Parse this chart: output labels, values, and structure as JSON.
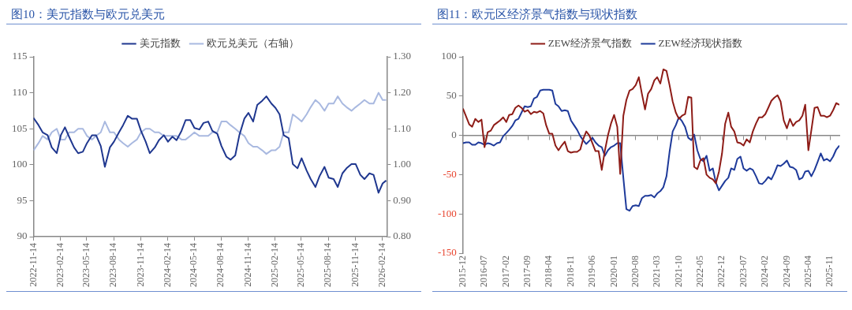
{
  "chart_data": [
    {
      "type": "line",
      "title": "图10：美元指数与欧元兑美元",
      "legend": "top",
      "grid": false,
      "x": [
        "2022-11-14",
        "2022-12-01",
        "2022-12-15",
        "2023-01-01",
        "2023-01-15",
        "2023-02-01",
        "2023-02-15",
        "2023-03-01",
        "2023-03-15",
        "2023-04-01",
        "2023-04-15",
        "2023-05-01",
        "2023-05-15",
        "2023-06-01",
        "2023-06-15",
        "2023-07-01",
        "2023-07-15",
        "2023-08-01",
        "2023-08-15",
        "2023-09-01",
        "2023-09-15",
        "2023-10-01",
        "2023-10-15",
        "2023-11-01",
        "2023-11-15",
        "2023-12-01",
        "2023-12-15",
        "2024-01-01",
        "2024-01-15",
        "2024-02-01",
        "2024-02-15",
        "2024-03-01",
        "2024-03-15",
        "2024-04-01",
        "2024-04-15",
        "2024-05-01",
        "2024-05-15",
        "2024-06-01",
        "2024-06-15",
        "2024-07-01",
        "2024-07-15",
        "2024-08-01",
        "2024-08-15",
        "2024-09-01",
        "2024-09-15",
        "2024-10-01",
        "2024-10-15",
        "2024-11-01",
        "2024-11-15",
        "2024-12-01",
        "2024-12-15",
        "2025-01-01",
        "2025-01-15",
        "2025-02-01",
        "2025-02-15",
        "2025-03-01",
        "2025-03-15",
        "2025-04-01",
        "2025-04-15",
        "2025-05-01",
        "2025-05-15",
        "2025-06-01",
        "2025-06-15",
        "2025-07-01",
        "2025-07-15",
        "2025-08-01",
        "2025-08-15",
        "2025-09-01",
        "2025-09-15",
        "2025-10-01",
        "2025-10-15",
        "2025-11-01",
        "2025-11-15",
        "2025-12-01",
        "2025-12-15",
        "2026-01-01",
        "2026-01-15",
        "2026-02-01",
        "2026-02-15",
        "2026-02-27"
      ],
      "xlim": [
        "2022-11-14",
        "2026-03-01"
      ],
      "xticks": [
        "2022-11-14",
        "2023-02-14",
        "2023-05-14",
        "2023-08-14",
        "2023-11-14",
        "2024-02-14",
        "2024-05-14",
        "2024-08-14",
        "2024-11-14",
        "2025-02-14",
        "2025-05-14",
        "2025-08-14",
        "2025-11-14",
        "2026-02-14"
      ],
      "ylim": [
        90,
        115
      ],
      "yticks": [
        90,
        95,
        100,
        105,
        110,
        115
      ],
      "y2lim": [
        0.8,
        1.3
      ],
      "y2ticks": [
        {
          "value": 0.8,
          "label": "0.80"
        },
        {
          "value": 0.9,
          "label": "0.90"
        },
        {
          "value": 1.0,
          "label": "1.00"
        },
        {
          "value": 1.1,
          "label": "1.10"
        },
        {
          "value": 1.2,
          "label": "1.20"
        },
        {
          "value": 1.3,
          "label": "1.30"
        }
      ],
      "series": [
        {
          "name": "美元指数",
          "color": "#1f378f",
          "values": [
            106.5,
            105.5,
            104.5,
            104.1,
            102.4,
            101.6,
            104.1,
            105.2,
            103.9,
            102.4,
            101.6,
            101.8,
            103.0,
            104.1,
            104.1,
            102.6,
            99.7,
            102.4,
            103.2,
            104.5,
            105.5,
            106.8,
            106.4,
            106.4,
            104.7,
            103.2,
            101.6,
            102.4,
            103.4,
            104.1,
            103.2,
            103.9,
            103.4,
            104.7,
            106.2,
            106.2,
            105.1,
            104.9,
            105.8,
            106.0,
            104.7,
            104.3,
            102.6,
            101.1,
            100.7,
            101.3,
            104.1,
            106.4,
            107.2,
            106.0,
            108.3,
            108.9,
            109.5,
            108.5,
            107.9,
            107.0,
            104.1,
            103.7,
            100.1,
            99.5,
            100.9,
            99.2,
            98.0,
            96.9,
            98.4,
            99.7,
            98.2,
            98.0,
            96.9,
            98.8,
            99.5,
            100.1,
            100.1,
            98.6,
            98.0,
            98.8,
            98.6,
            96.1,
            97.4,
            97.8
          ]
        },
        {
          "name": "欧元兑美元（右轴）",
          "color": "#a9b9e0",
          "axis": "y2",
          "values": [
            1.04,
            1.06,
            1.08,
            1.07,
            1.09,
            1.1,
            1.07,
            1.07,
            1.09,
            1.09,
            1.1,
            1.1,
            1.08,
            1.07,
            1.08,
            1.09,
            1.12,
            1.09,
            1.09,
            1.07,
            1.06,
            1.05,
            1.06,
            1.07,
            1.09,
            1.1,
            1.1,
            1.09,
            1.09,
            1.08,
            1.08,
            1.08,
            1.08,
            1.07,
            1.07,
            1.08,
            1.09,
            1.08,
            1.08,
            1.08,
            1.09,
            1.09,
            1.12,
            1.12,
            1.11,
            1.1,
            1.09,
            1.08,
            1.06,
            1.05,
            1.05,
            1.04,
            1.03,
            1.04,
            1.04,
            1.05,
            1.09,
            1.09,
            1.14,
            1.13,
            1.12,
            1.14,
            1.16,
            1.18,
            1.17,
            1.15,
            1.17,
            1.17,
            1.19,
            1.17,
            1.16,
            1.15,
            1.16,
            1.17,
            1.18,
            1.17,
            1.17,
            1.2,
            1.18,
            1.18
          ]
        }
      ]
    },
    {
      "type": "line",
      "title": "图11：欧元区经济景气指数与现状指数",
      "legend": "top",
      "grid": false,
      "x": [
        "2015-12",
        "2016-01",
        "2016-02",
        "2016-03",
        "2016-04",
        "2016-05",
        "2016-06",
        "2016-07",
        "2016-08",
        "2016-09",
        "2016-10",
        "2016-11",
        "2016-12",
        "2017-01",
        "2017-02",
        "2017-03",
        "2017-04",
        "2017-05",
        "2017-06",
        "2017-07",
        "2017-08",
        "2017-09",
        "2017-10",
        "2017-11",
        "2017-12",
        "2018-01",
        "2018-02",
        "2018-03",
        "2018-04",
        "2018-05",
        "2018-06",
        "2018-07",
        "2018-08",
        "2018-09",
        "2018-10",
        "2018-11",
        "2018-12",
        "2019-01",
        "2019-02",
        "2019-03",
        "2019-04",
        "2019-05",
        "2019-06",
        "2019-07",
        "2019-08",
        "2019-09",
        "2019-10",
        "2019-11",
        "2019-12",
        "2020-01",
        "2020-02",
        "2020-03",
        "2020-04",
        "2020-05",
        "2020-06",
        "2020-07",
        "2020-08",
        "2020-09",
        "2020-10",
        "2020-11",
        "2020-12",
        "2021-01",
        "2021-02",
        "2021-03",
        "2021-04",
        "2021-05",
        "2021-06",
        "2021-07",
        "2021-08",
        "2021-09",
        "2021-10",
        "2021-11",
        "2021-12",
        "2022-01",
        "2022-02",
        "2022-03",
        "2022-04",
        "2022-05",
        "2022-06",
        "2022-07",
        "2022-08",
        "2022-09",
        "2022-10",
        "2022-11",
        "2022-12",
        "2023-01",
        "2023-02",
        "2023-03",
        "2023-04",
        "2023-05",
        "2023-06",
        "2023-07",
        "2023-08",
        "2023-09",
        "2023-10",
        "2023-11",
        "2023-12",
        "2024-01",
        "2024-02",
        "2024-03",
        "2024-04",
        "2024-05",
        "2024-06",
        "2024-07",
        "2024-08",
        "2024-09",
        "2024-10",
        "2024-11",
        "2024-12",
        "2025-01",
        "2025-02",
        "2025-03",
        "2025-04",
        "2025-05",
        "2025-06",
        "2025-07",
        "2025-08",
        "2025-09",
        "2025-10",
        "2025-11",
        "2025-12",
        "2026-01",
        "2026-02"
      ],
      "xlim": [
        "2015-12",
        "2026-02"
      ],
      "xticks": [
        "2015-12",
        "2016-07",
        "2017-02",
        "2017-09",
        "2018-04",
        "2018-11",
        "2019-06",
        "2020-01",
        "2020-08",
        "2021-03",
        "2021-10",
        "2022-05",
        "2022-12",
        "2023-07",
        "2024-02",
        "2024-09",
        "2025-04",
        "2025-11"
      ],
      "ylim": [
        -150,
        100
      ],
      "yticks": [
        -150,
        -100,
        -50,
        0,
        50,
        100
      ],
      "ref_lines": [
        {
          "axis": "y",
          "value": 0,
          "color": "#888888"
        }
      ],
      "series": [
        {
          "name": "ZEW经济景气指数",
          "color": "#8e1c17",
          "values": [
            34,
            24,
            14,
            11,
            21,
            17,
            20,
            -15,
            4,
            6,
            13,
            16,
            19,
            23,
            17,
            26,
            27,
            35,
            38,
            35,
            30,
            32,
            27,
            30,
            29,
            31,
            28,
            13,
            2,
            2,
            -13,
            -19,
            -13,
            -8,
            -20,
            -22,
            -21,
            -21,
            -18,
            -5,
            5,
            0,
            -10,
            -20,
            -20,
            -44,
            -20,
            0,
            15,
            26,
            11,
            -49,
            25,
            45,
            57,
            59,
            64,
            74,
            53,
            33,
            53,
            59,
            70,
            74,
            66,
            84,
            82,
            64,
            43,
            29,
            21,
            25,
            27,
            49,
            48,
            -40,
            -43,
            -32,
            -29,
            -50,
            -54,
            -56,
            -61,
            -46,
            -23,
            15,
            29,
            11,
            5,
            -9,
            -10,
            -13,
            -5,
            -9,
            5,
            15,
            23,
            23,
            27,
            35,
            44,
            48,
            51,
            43,
            19,
            9,
            21,
            12,
            17,
            19,
            25,
            39,
            -19,
            7,
            35,
            36,
            25,
            25,
            23,
            25,
            32,
            41,
            39
          ]
        },
        {
          "name": "ZEW经济现状指数",
          "color": "#1e3a9a",
          "values": [
            -10,
            -9,
            -9,
            -12,
            -12,
            -9,
            -10,
            -12,
            -10,
            -11,
            -13,
            -10,
            -9,
            -1,
            3,
            7,
            12,
            19,
            21,
            29,
            37,
            36,
            37,
            47,
            49,
            57,
            58,
            58,
            58,
            57,
            40,
            37,
            31,
            32,
            31,
            19,
            13,
            7,
            -1,
            -6,
            -11,
            -7,
            -3,
            -9,
            -13,
            -15,
            -26,
            -19,
            -15,
            -13,
            -10,
            -10,
            -54,
            -94,
            -96,
            -90,
            -89,
            -90,
            -80,
            -77,
            -77,
            -76,
            -79,
            -74,
            -71,
            -66,
            -52,
            -21,
            5,
            13,
            23,
            18,
            11,
            -3,
            -6,
            1,
            -19,
            -30,
            -33,
            -26,
            -45,
            -42,
            -60,
            -70,
            -64,
            -58,
            -54,
            -42,
            -44,
            -30,
            -27,
            -42,
            -45,
            -42,
            -44,
            -52,
            -61,
            -62,
            -58,
            -53,
            -56,
            -48,
            -38,
            -39,
            -36,
            -32,
            -40,
            -41,
            -44,
            -56,
            -54,
            -46,
            -45,
            -52,
            -44,
            -34,
            -23,
            -32,
            -30,
            -33,
            -27,
            -18,
            -13
          ]
        }
      ]
    }
  ]
}
